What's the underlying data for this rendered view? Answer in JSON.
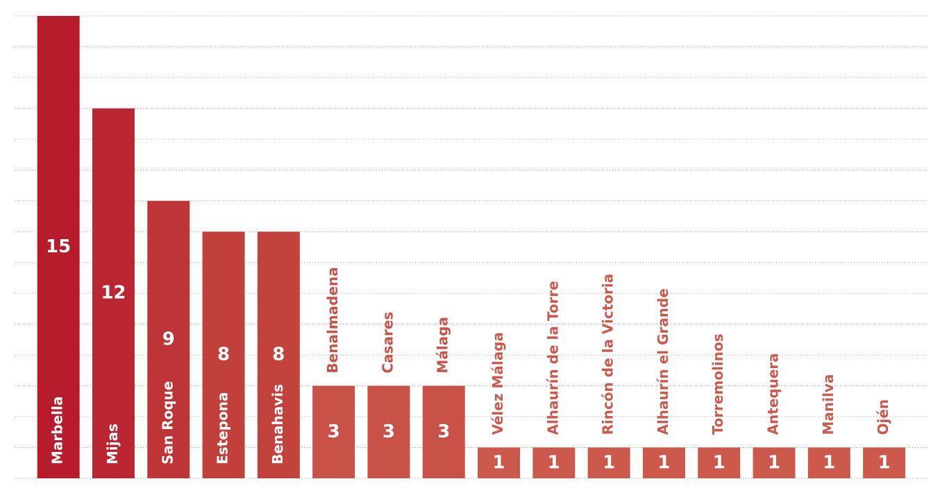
{
  "chart_data": {
    "type": "bar",
    "categories": [
      "Marbella",
      "Mijas",
      "San Roque",
      "Estepona",
      "Benahavis",
      "Benalmadena",
      "Casares",
      "Málaga",
      "Vélez Málaga",
      "Alhaurín de la Torre",
      "Rincón de la Victoria",
      "Alhaurín el Grande",
      "Torremolinos",
      "Antequera",
      "Manilva",
      "Ojén"
    ],
    "values": [
      15,
      12,
      9,
      8,
      8,
      3,
      3,
      3,
      1,
      1,
      1,
      1,
      1,
      1,
      1,
      1
    ],
    "colors": [
      "#b71c2c",
      "#ba2732",
      "#be3537",
      "#c1403c",
      "#c2433e",
      "#c85247",
      "#c85247",
      "#c85247",
      "#cb5a4d",
      "#cb5a4d",
      "#cb5a4d",
      "#cb5a4d",
      "#cb5a4d",
      "#cb5a4d",
      "#cb5a4d",
      "#cb5a4d"
    ],
    "ylim": [
      0,
      15
    ],
    "yticks": [
      0,
      1,
      2,
      3,
      4,
      5,
      6,
      7,
      8,
      9,
      10,
      11,
      12,
      13,
      14,
      15
    ],
    "grid": true
  }
}
